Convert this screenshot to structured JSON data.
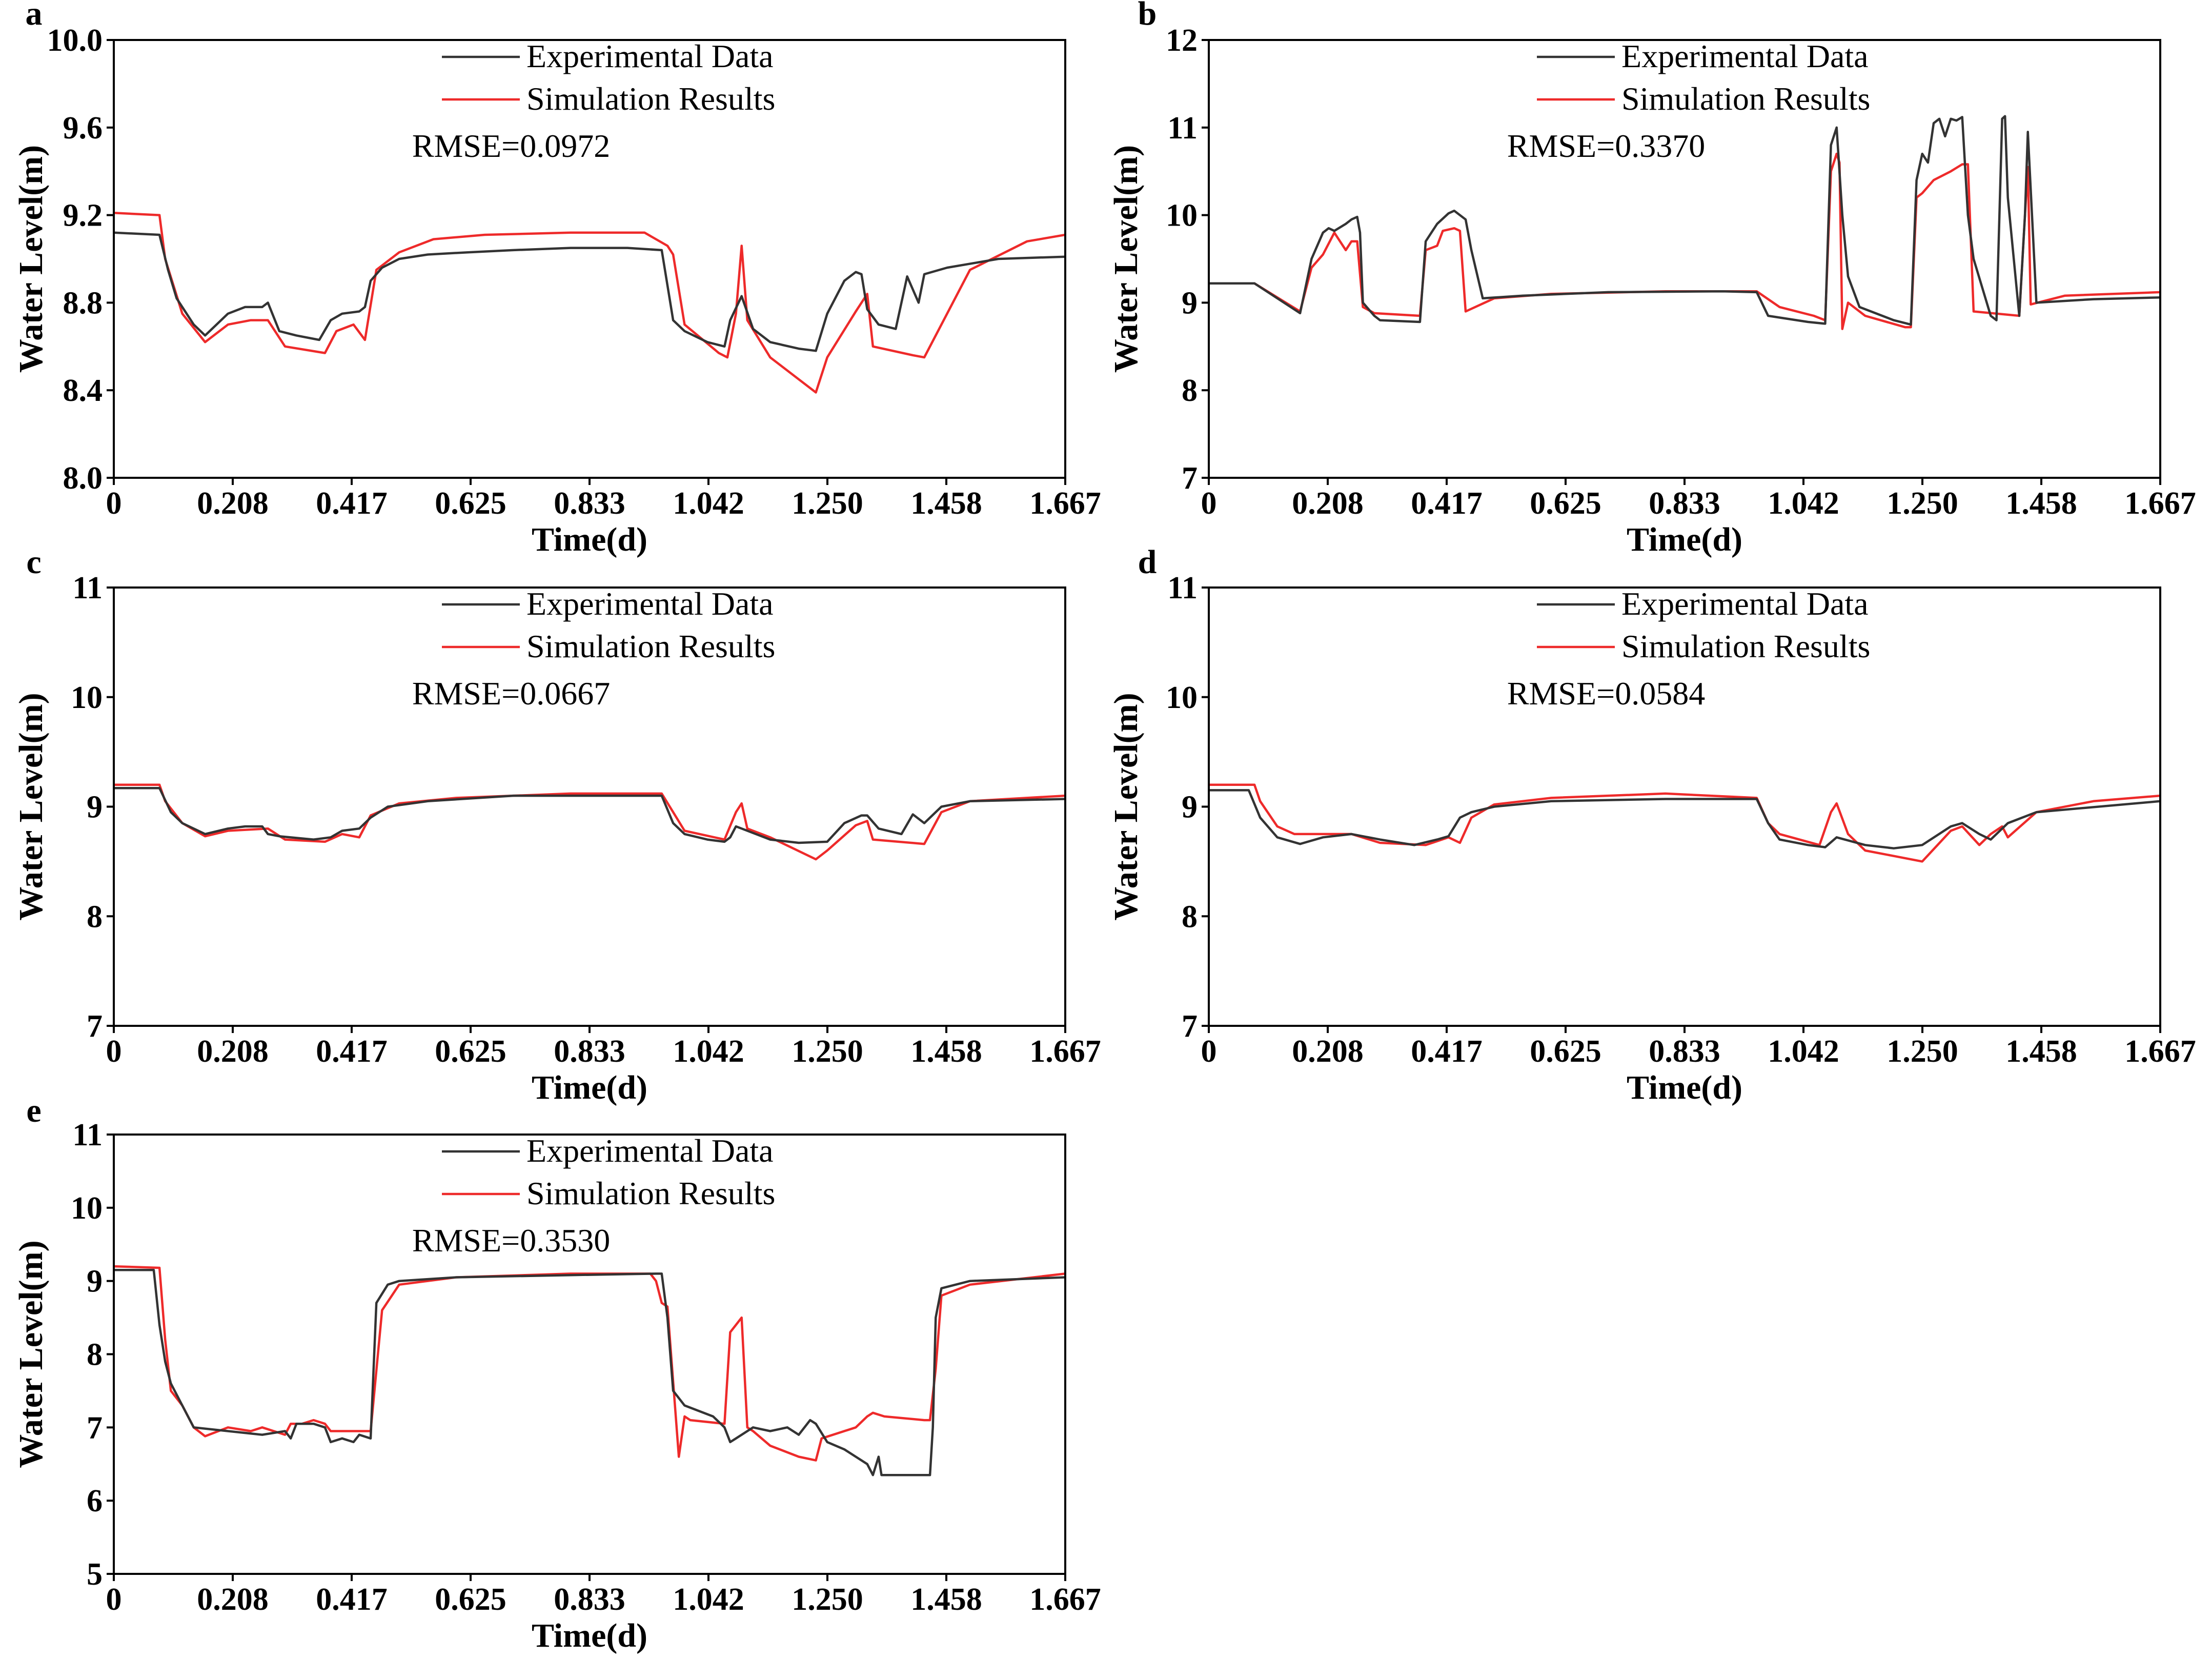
{
  "figure": {
    "panels_count": 5
  },
  "chart_data": [
    {
      "panel": "a",
      "type": "line",
      "xlabel": "Time(d)",
      "ylabel": "Water Level(m)",
      "xlim": [
        0,
        1.667
      ],
      "ylim": [
        8.0,
        10.0
      ],
      "xticks": [
        "0",
        "0.208",
        "0.417",
        "0.625",
        "0.833",
        "1.042",
        "1.250",
        "1.458",
        "1.667"
      ],
      "yticks": [
        "8.0",
        "8.4",
        "8.8",
        "9.2",
        "9.6",
        "10.0"
      ],
      "annotation": "RMSE=0.0972",
      "series": [
        {
          "name": "Experimental Data",
          "color": "#333333",
          "x": [
            0,
            0.08,
            0.095,
            0.11,
            0.14,
            0.16,
            0.2,
            0.23,
            0.26,
            0.27,
            0.29,
            0.32,
            0.36,
            0.38,
            0.4,
            0.43,
            0.44,
            0.45,
            0.47,
            0.5,
            0.55,
            0.62,
            0.7,
            0.8,
            0.9,
            0.96,
            0.98,
            1.0,
            1.04,
            1.07,
            1.08,
            1.1,
            1.12,
            1.15,
            1.2,
            1.23,
            1.25,
            1.28,
            1.3,
            1.31,
            1.32,
            1.34,
            1.37,
            1.39,
            1.41,
            1.42,
            1.46,
            1.55,
            1.667
          ],
          "y": [
            9.12,
            9.11,
            8.95,
            8.82,
            8.7,
            8.65,
            8.75,
            8.78,
            8.78,
            8.8,
            8.67,
            8.65,
            8.63,
            8.72,
            8.75,
            8.76,
            8.78,
            8.9,
            8.96,
            9.0,
            9.02,
            9.03,
            9.04,
            9.05,
            9.05,
            9.04,
            8.72,
            8.67,
            8.62,
            8.6,
            8.72,
            8.83,
            8.68,
            8.62,
            8.59,
            8.58,
            8.75,
            8.9,
            8.94,
            8.93,
            8.77,
            8.7,
            8.68,
            8.92,
            8.8,
            8.93,
            8.96,
            9.0,
            9.01
          ]
        },
        {
          "name": "Simulation Results",
          "color": "#ee2a2a",
          "x": [
            0,
            0.08,
            0.09,
            0.12,
            0.16,
            0.2,
            0.24,
            0.27,
            0.3,
            0.37,
            0.39,
            0.42,
            0.44,
            0.46,
            0.5,
            0.56,
            0.65,
            0.8,
            0.93,
            0.97,
            0.98,
            1.0,
            1.06,
            1.075,
            1.09,
            1.1,
            1.11,
            1.15,
            1.2,
            1.23,
            1.25,
            1.3,
            1.32,
            1.33,
            1.4,
            1.42,
            1.5,
            1.6,
            1.667
          ],
          "y": [
            9.21,
            9.2,
            9.0,
            8.75,
            8.62,
            8.7,
            8.72,
            8.72,
            8.6,
            8.57,
            8.67,
            8.7,
            8.63,
            8.95,
            9.03,
            9.09,
            9.11,
            9.12,
            9.12,
            9.06,
            9.02,
            8.7,
            8.57,
            8.55,
            8.75,
            9.06,
            8.72,
            8.55,
            8.45,
            8.39,
            8.55,
            8.76,
            8.84,
            8.6,
            8.56,
            8.55,
            8.95,
            9.08,
            9.11
          ]
        }
      ]
    },
    {
      "panel": "b",
      "type": "line",
      "xlabel": "Time(d)",
      "ylabel": "Water Level(m)",
      "xlim": [
        0,
        1.667
      ],
      "ylim": [
        7,
        12
      ],
      "xticks": [
        "0",
        "0.208",
        "0.417",
        "0.625",
        "0.833",
        "1.042",
        "1.250",
        "1.458",
        "1.667"
      ],
      "yticks": [
        "7",
        "8",
        "9",
        "10",
        "11",
        "12"
      ],
      "annotation": "RMSE=0.3370",
      "series": [
        {
          "name": "Experimental Data",
          "color": "#333333",
          "x": [
            0,
            0.08,
            0.16,
            0.18,
            0.2,
            0.21,
            0.22,
            0.24,
            0.25,
            0.26,
            0.265,
            0.27,
            0.29,
            0.3,
            0.37,
            0.38,
            0.4,
            0.42,
            0.43,
            0.44,
            0.45,
            0.46,
            0.48,
            0.55,
            0.7,
            0.9,
            0.96,
            0.98,
            1.05,
            1.08,
            1.09,
            1.1,
            1.11,
            1.12,
            1.14,
            1.2,
            1.23,
            1.24,
            1.25,
            1.26,
            1.27,
            1.28,
            1.29,
            1.3,
            1.31,
            1.32,
            1.33,
            1.34,
            1.37,
            1.38,
            1.39,
            1.395,
            1.4,
            1.42,
            1.43,
            1.435,
            1.45,
            1.55,
            1.667
          ],
          "y": [
            9.22,
            9.22,
            8.88,
            9.5,
            9.8,
            9.85,
            9.82,
            9.9,
            9.95,
            9.98,
            9.8,
            9.0,
            8.85,
            8.8,
            8.78,
            9.7,
            9.9,
            10.02,
            10.05,
            10.0,
            9.95,
            9.6,
            9.05,
            9.08,
            9.12,
            9.13,
            9.12,
            8.85,
            8.78,
            8.76,
            10.8,
            11.0,
            10.0,
            9.3,
            8.95,
            8.8,
            8.75,
            10.4,
            10.7,
            10.6,
            11.05,
            11.1,
            10.9,
            11.1,
            11.08,
            11.12,
            10.0,
            9.5,
            8.85,
            8.8,
            11.1,
            11.13,
            10.2,
            8.85,
            10.0,
            10.95,
            9.0,
            9.04,
            9.06
          ]
        },
        {
          "name": "Simulation Results",
          "color": "#ee2a2a",
          "x": [
            0,
            0.08,
            0.16,
            0.18,
            0.2,
            0.22,
            0.24,
            0.25,
            0.26,
            0.27,
            0.29,
            0.37,
            0.38,
            0.4,
            0.41,
            0.43,
            0.44,
            0.45,
            0.5,
            0.6,
            0.8,
            0.96,
            1.0,
            1.06,
            1.08,
            1.09,
            1.1,
            1.105,
            1.11,
            1.12,
            1.15,
            1.22,
            1.23,
            1.24,
            1.25,
            1.27,
            1.3,
            1.32,
            1.33,
            1.34,
            1.42,
            1.43,
            1.435,
            1.44,
            1.5,
            1.667
          ],
          "y": [
            9.22,
            9.22,
            8.9,
            9.4,
            9.55,
            9.8,
            9.6,
            9.7,
            9.7,
            8.95,
            8.88,
            8.85,
            9.6,
            9.65,
            9.82,
            9.85,
            9.82,
            8.9,
            9.05,
            9.1,
            9.13,
            9.13,
            8.95,
            8.85,
            8.8,
            10.5,
            10.7,
            10.6,
            8.7,
            9.0,
            8.85,
            8.72,
            8.72,
            10.2,
            10.25,
            10.4,
            10.5,
            10.58,
            10.58,
            8.9,
            8.85,
            10.0,
            10.55,
            8.98,
            9.08,
            9.12
          ]
        }
      ]
    },
    {
      "panel": "c",
      "type": "line",
      "xlabel": "Time(d)",
      "ylabel": "Water Level(m)",
      "xlim": [
        0,
        1.667
      ],
      "ylim": [
        7,
        11
      ],
      "xticks": [
        "0",
        "0.208",
        "0.417",
        "0.625",
        "0.833",
        "1.042",
        "1.250",
        "1.458",
        "1.667"
      ],
      "yticks": [
        "7",
        "8",
        "9",
        "10",
        "11"
      ],
      "annotation": "RMSE=0.0667",
      "series": [
        {
          "name": "Experimental Data",
          "color": "#333333",
          "x": [
            0,
            0.08,
            0.1,
            0.12,
            0.16,
            0.2,
            0.23,
            0.26,
            0.27,
            0.29,
            0.35,
            0.38,
            0.4,
            0.43,
            0.45,
            0.48,
            0.55,
            0.7,
            0.9,
            0.96,
            0.98,
            1.0,
            1.04,
            1.07,
            1.08,
            1.09,
            1.1,
            1.15,
            1.2,
            1.25,
            1.28,
            1.31,
            1.32,
            1.34,
            1.38,
            1.4,
            1.42,
            1.45,
            1.5,
            1.667
          ],
          "y": [
            9.17,
            9.17,
            8.95,
            8.85,
            8.75,
            8.8,
            8.82,
            8.82,
            8.75,
            8.73,
            8.7,
            8.72,
            8.78,
            8.8,
            8.9,
            9.0,
            9.05,
            9.1,
            9.1,
            9.1,
            8.85,
            8.75,
            8.7,
            8.68,
            8.72,
            8.82,
            8.8,
            8.7,
            8.67,
            8.68,
            8.85,
            8.92,
            8.92,
            8.8,
            8.75,
            8.93,
            8.85,
            9.0,
            9.05,
            9.07
          ]
        },
        {
          "name": "Simulation Results",
          "color": "#ee2a2a",
          "x": [
            0,
            0.08,
            0.09,
            0.12,
            0.16,
            0.2,
            0.27,
            0.3,
            0.37,
            0.4,
            0.43,
            0.45,
            0.5,
            0.6,
            0.8,
            0.96,
            0.98,
            1.0,
            1.07,
            1.09,
            1.1,
            1.11,
            1.15,
            1.23,
            1.25,
            1.3,
            1.32,
            1.33,
            1.42,
            1.45,
            1.5,
            1.667
          ],
          "y": [
            9.2,
            9.2,
            9.05,
            8.85,
            8.73,
            8.78,
            8.8,
            8.7,
            8.68,
            8.75,
            8.72,
            8.92,
            9.03,
            9.08,
            9.12,
            9.12,
            8.95,
            8.78,
            8.7,
            8.95,
            9.03,
            8.8,
            8.72,
            8.52,
            8.6,
            8.83,
            8.87,
            8.7,
            8.66,
            8.95,
            9.05,
            9.1
          ]
        }
      ]
    },
    {
      "panel": "d",
      "type": "line",
      "xlabel": "Time(d)",
      "ylabel": "Water Level(m)",
      "xlim": [
        0,
        1.667
      ],
      "ylim": [
        7,
        11
      ],
      "xticks": [
        "0",
        "0.208",
        "0.417",
        "0.625",
        "0.833",
        "1.042",
        "1.250",
        "1.458",
        "1.667"
      ],
      "yticks": [
        "7",
        "8",
        "9",
        "10",
        "11"
      ],
      "annotation": "RMSE=0.0584",
      "series": [
        {
          "name": "Experimental Data",
          "color": "#333333",
          "x": [
            0,
            0.07,
            0.09,
            0.12,
            0.16,
            0.2,
            0.25,
            0.3,
            0.36,
            0.4,
            0.42,
            0.44,
            0.46,
            0.5,
            0.6,
            0.8,
            0.96,
            0.98,
            1.0,
            1.05,
            1.08,
            1.1,
            1.15,
            1.2,
            1.25,
            1.3,
            1.32,
            1.35,
            1.37,
            1.39,
            1.4,
            1.45,
            1.667
          ],
          "y": [
            9.15,
            9.15,
            8.9,
            8.72,
            8.66,
            8.72,
            8.75,
            8.7,
            8.65,
            8.7,
            8.73,
            8.9,
            8.95,
            9.0,
            9.05,
            9.07,
            9.07,
            8.85,
            8.7,
            8.65,
            8.63,
            8.72,
            8.65,
            8.62,
            8.65,
            8.82,
            8.85,
            8.75,
            8.7,
            8.8,
            8.85,
            8.95,
            9.05
          ]
        },
        {
          "name": "Simulation Results",
          "color": "#ee2a2a",
          "x": [
            0,
            0.08,
            0.09,
            0.12,
            0.15,
            0.2,
            0.25,
            0.3,
            0.38,
            0.42,
            0.44,
            0.46,
            0.5,
            0.6,
            0.8,
            0.96,
            0.98,
            1.0,
            1.07,
            1.09,
            1.1,
            1.12,
            1.15,
            1.2,
            1.25,
            1.3,
            1.32,
            1.35,
            1.37,
            1.39,
            1.4,
            1.45,
            1.55,
            1.667
          ],
          "y": [
            9.2,
            9.2,
            9.05,
            8.82,
            8.75,
            8.75,
            8.75,
            8.67,
            8.65,
            8.72,
            8.67,
            8.9,
            9.02,
            9.08,
            9.12,
            9.08,
            8.85,
            8.75,
            8.65,
            8.95,
            9.03,
            8.75,
            8.6,
            8.55,
            8.5,
            8.78,
            8.82,
            8.65,
            8.75,
            8.82,
            8.72,
            8.95,
            9.05,
            9.1
          ]
        }
      ]
    },
    {
      "panel": "e",
      "type": "line",
      "xlabel": "Time(d)",
      "ylabel": "Water Level(m)",
      "xlim": [
        0,
        1.667
      ],
      "ylim": [
        5,
        11
      ],
      "xticks": [
        "0",
        "0.208",
        "0.417",
        "0.625",
        "0.833",
        "1.042",
        "1.250",
        "1.458",
        "1.667"
      ],
      "yticks": [
        "5",
        "6",
        "7",
        "8",
        "9",
        "10",
        "11"
      ],
      "annotation": "RMSE=0.3530",
      "series": [
        {
          "name": "Experimental Data",
          "color": "#333333",
          "x": [
            0,
            0.07,
            0.08,
            0.09,
            0.1,
            0.12,
            0.14,
            0.2,
            0.26,
            0.3,
            0.31,
            0.32,
            0.35,
            0.37,
            0.38,
            0.4,
            0.42,
            0.43,
            0.45,
            0.46,
            0.48,
            0.5,
            0.6,
            0.8,
            0.95,
            0.96,
            0.97,
            0.98,
            1.0,
            1.05,
            1.07,
            1.08,
            1.09,
            1.12,
            1.15,
            1.18,
            1.2,
            1.22,
            1.23,
            1.25,
            1.28,
            1.3,
            1.32,
            1.33,
            1.34,
            1.345,
            1.35,
            1.38,
            1.43,
            1.435,
            1.44,
            1.45,
            1.5,
            1.667
          ],
          "y": [
            9.15,
            9.15,
            8.4,
            7.9,
            7.6,
            7.3,
            7.0,
            6.95,
            6.9,
            6.95,
            6.85,
            7.05,
            7.05,
            7.0,
            6.8,
            6.85,
            6.8,
            6.9,
            6.85,
            8.7,
            8.95,
            9.0,
            9.05,
            9.08,
            9.1,
            9.1,
            8.5,
            7.5,
            7.3,
            7.15,
            7.0,
            6.8,
            6.85,
            7.0,
            6.95,
            7.0,
            6.9,
            7.1,
            7.05,
            6.8,
            6.7,
            6.6,
            6.5,
            6.35,
            6.6,
            6.35,
            6.35,
            6.35,
            6.35,
            7.0,
            8.5,
            8.9,
            9.0,
            9.05
          ]
        },
        {
          "name": "Simulation Results",
          "color": "#ee2a2a",
          "x": [
            0,
            0.08,
            0.09,
            0.1,
            0.12,
            0.14,
            0.16,
            0.2,
            0.24,
            0.26,
            0.3,
            0.31,
            0.33,
            0.35,
            0.37,
            0.38,
            0.44,
            0.45,
            0.47,
            0.5,
            0.6,
            0.8,
            0.94,
            0.95,
            0.96,
            0.97,
            0.99,
            1.0,
            1.01,
            1.07,
            1.08,
            1.09,
            1.1,
            1.11,
            1.12,
            1.15,
            1.2,
            1.23,
            1.24,
            1.3,
            1.32,
            1.33,
            1.35,
            1.42,
            1.43,
            1.44,
            1.45,
            1.5,
            1.667
          ],
          "y": [
            9.2,
            9.18,
            8.2,
            7.5,
            7.3,
            7.0,
            6.88,
            7.0,
            6.95,
            7.0,
            6.9,
            7.05,
            7.05,
            7.1,
            7.05,
            6.95,
            6.95,
            6.95,
            8.6,
            8.95,
            9.05,
            9.1,
            9.1,
            9.0,
            8.7,
            8.65,
            6.6,
            7.15,
            7.1,
            7.05,
            8.3,
            8.4,
            8.5,
            7.0,
            6.95,
            6.75,
            6.6,
            6.55,
            6.85,
            7.0,
            7.15,
            7.2,
            7.15,
            7.1,
            7.1,
            7.8,
            8.8,
            8.95,
            9.1
          ]
        }
      ]
    }
  ]
}
